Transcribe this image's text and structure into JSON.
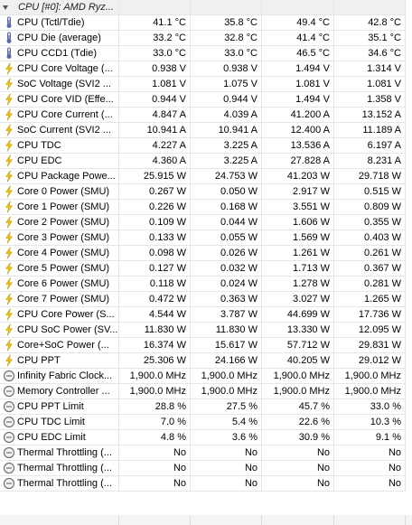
{
  "section_title": "CPU [#0]: AMD Ryz...",
  "rows": [
    {
      "icon": "thermometer",
      "name": "CPU (Tctl/Tdie)",
      "v": [
        "41.1 °C",
        "35.8 °C",
        "49.4 °C",
        "42.8 °C"
      ]
    },
    {
      "icon": "thermometer",
      "name": "CPU Die (average)",
      "v": [
        "33.2 °C",
        "32.8 °C",
        "41.4 °C",
        "35.1 °C"
      ]
    },
    {
      "icon": "thermometer",
      "name": "CPU CCD1 (Tdie)",
      "v": [
        "33.0 °C",
        "33.0 °C",
        "46.5 °C",
        "34.6 °C"
      ]
    },
    {
      "icon": "lightning",
      "name": "CPU Core Voltage (...",
      "v": [
        "0.938 V",
        "0.938 V",
        "1.494 V",
        "1.314 V"
      ]
    },
    {
      "icon": "lightning",
      "name": "SoC Voltage (SVI2 ...",
      "v": [
        "1.081 V",
        "1.075 V",
        "1.081 V",
        "1.081 V"
      ]
    },
    {
      "icon": "lightning",
      "name": "CPU Core VID (Effe...",
      "v": [
        "0.944 V",
        "0.944 V",
        "1.494 V",
        "1.358 V"
      ]
    },
    {
      "icon": "lightning",
      "name": "CPU Core Current (...",
      "v": [
        "4.847 A",
        "4.039 A",
        "41.200 A",
        "13.152 A"
      ]
    },
    {
      "icon": "lightning",
      "name": "SoC Current (SVI2 ...",
      "v": [
        "10.941 A",
        "10.941 A",
        "12.400 A",
        "11.189 A"
      ]
    },
    {
      "icon": "lightning",
      "name": "CPU TDC",
      "v": [
        "4.227 A",
        "3.225 A",
        "13.536 A",
        "6.197 A"
      ]
    },
    {
      "icon": "lightning",
      "name": "CPU EDC",
      "v": [
        "4.360 A",
        "3.225 A",
        "27.828 A",
        "8.231 A"
      ]
    },
    {
      "icon": "lightning",
      "name": "CPU Package Powe...",
      "v": [
        "25.915 W",
        "24.753 W",
        "41.203 W",
        "29.718 W"
      ]
    },
    {
      "icon": "lightning",
      "name": "Core 0 Power (SMU)",
      "v": [
        "0.267 W",
        "0.050 W",
        "2.917 W",
        "0.515 W"
      ]
    },
    {
      "icon": "lightning",
      "name": "Core 1 Power (SMU)",
      "v": [
        "0.226 W",
        "0.168 W",
        "3.551 W",
        "0.809 W"
      ]
    },
    {
      "icon": "lightning",
      "name": "Core 2 Power (SMU)",
      "v": [
        "0.109 W",
        "0.044 W",
        "1.606 W",
        "0.355 W"
      ]
    },
    {
      "icon": "lightning",
      "name": "Core 3 Power (SMU)",
      "v": [
        "0.133 W",
        "0.055 W",
        "1.569 W",
        "0.403 W"
      ]
    },
    {
      "icon": "lightning",
      "name": "Core 4 Power (SMU)",
      "v": [
        "0.098 W",
        "0.026 W",
        "1.261 W",
        "0.261 W"
      ]
    },
    {
      "icon": "lightning",
      "name": "Core 5 Power (SMU)",
      "v": [
        "0.127 W",
        "0.032 W",
        "1.713 W",
        "0.367 W"
      ]
    },
    {
      "icon": "lightning",
      "name": "Core 6 Power (SMU)",
      "v": [
        "0.118 W",
        "0.024 W",
        "1.278 W",
        "0.281 W"
      ]
    },
    {
      "icon": "lightning",
      "name": "Core 7 Power (SMU)",
      "v": [
        "0.472 W",
        "0.363 W",
        "3.027 W",
        "1.265 W"
      ]
    },
    {
      "icon": "lightning",
      "name": "CPU Core Power (S...",
      "v": [
        "4.544 W",
        "3.787 W",
        "44.699 W",
        "17.736 W"
      ]
    },
    {
      "icon": "lightning",
      "name": "CPU SoC Power (SV...",
      "v": [
        "11.830 W",
        "11.830 W",
        "13.330 W",
        "12.095 W"
      ]
    },
    {
      "icon": "lightning",
      "name": "Core+SoC Power (...",
      "v": [
        "16.374 W",
        "15.617 W",
        "57.712 W",
        "29.831 W"
      ]
    },
    {
      "icon": "lightning",
      "name": "CPU PPT",
      "v": [
        "25.306 W",
        "24.166 W",
        "40.205 W",
        "29.012 W"
      ]
    },
    {
      "icon": "clock",
      "name": "Infinity Fabric Clock...",
      "v": [
        "1,900.0 MHz",
        "1,900.0 MHz",
        "1,900.0 MHz",
        "1,900.0 MHz"
      ]
    },
    {
      "icon": "clock",
      "name": "Memory Controller ...",
      "v": [
        "1,900.0 MHz",
        "1,900.0 MHz",
        "1,900.0 MHz",
        "1,900.0 MHz"
      ]
    },
    {
      "icon": "clock",
      "name": "CPU PPT Limit",
      "v": [
        "28.8 %",
        "27.5 %",
        "45.7 %",
        "33.0 %"
      ]
    },
    {
      "icon": "clock",
      "name": "CPU TDC Limit",
      "v": [
        "7.0 %",
        "5.4 %",
        "22.6 %",
        "10.3 %"
      ]
    },
    {
      "icon": "clock",
      "name": "CPU EDC Limit",
      "v": [
        "4.8 %",
        "3.6 %",
        "30.9 %",
        "9.1 %"
      ]
    },
    {
      "icon": "clock",
      "name": "Thermal Throttling (...",
      "v": [
        "No",
        "No",
        "No",
        "No"
      ]
    },
    {
      "icon": "clock",
      "name": "Thermal Throttling (...",
      "v": [
        "No",
        "No",
        "No",
        "No"
      ]
    },
    {
      "icon": "clock",
      "name": "Thermal Throttling (...",
      "v": [
        "No",
        "No",
        "No",
        "No"
      ]
    }
  ],
  "colors": {
    "thermometer": "#5a6aa8",
    "lightning": "#f2c300",
    "clock": "#707070"
  }
}
